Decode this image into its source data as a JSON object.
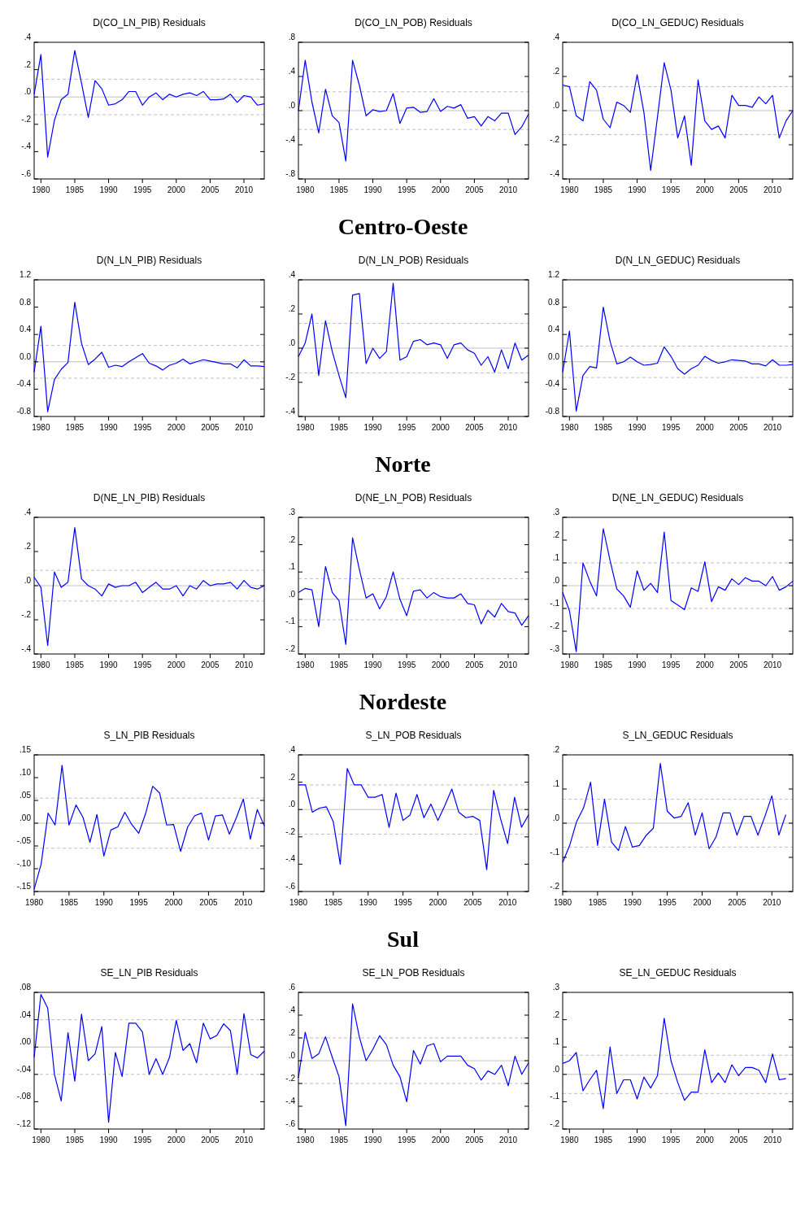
{
  "chart_data": [
    {
      "type": "line",
      "title": "D(CO_LN_PIB) Residuals",
      "x": [
        1979,
        1980,
        1981,
        1982,
        1983,
        1984,
        1985,
        1986,
        1987,
        1988,
        1989,
        1990,
        1991,
        1992,
        1993,
        1994,
        1995,
        1996,
        1997,
        1998,
        1999,
        2000,
        2001,
        2002,
        2003,
        2004,
        2005,
        2006,
        2007,
        2008,
        2009,
        2010,
        2011,
        2012,
        2013
      ],
      "color": "#0000ff",
      "values": [
        0.02,
        0.31,
        -0.44,
        -0.17,
        -0.02,
        0.02,
        0.34,
        0.1,
        -0.15,
        0.12,
        0.06,
        -0.06,
        -0.05,
        -0.02,
        0.04,
        0.04,
        -0.06,
        0.0,
        0.03,
        -0.02,
        0.02,
        0.0,
        0.02,
        0.03,
        0.01,
        0.04,
        -0.02,
        -0.02,
        -0.015,
        0.02,
        -0.04,
        0.01,
        0.0,
        -0.06,
        -0.05
      ],
      "xlim": [
        1979,
        2013
      ],
      "xticks": [
        1980,
        1985,
        1990,
        1995,
        2000,
        2005,
        2010
      ],
      "ylim": [
        -0.6,
        0.4
      ],
      "yticks": [
        {
          "value": -0.6,
          "label": "-.6"
        },
        {
          "value": -0.4,
          "label": "-.4"
        },
        {
          "value": -0.2,
          "label": "-.2"
        },
        {
          "value": 0,
          "label": ".0"
        },
        {
          "value": 0.2,
          "label": ".2"
        },
        {
          "value": 0.4,
          "label": ".4"
        }
      ],
      "ref_lines": [
        {
          "axis": "y",
          "value": 0,
          "color": "#c0c0c0",
          "line_style": "solid"
        },
        {
          "axis": "y",
          "value": 0.13,
          "color": "#c0c0c0",
          "line_style": "dashed"
        },
        {
          "axis": "y",
          "value": -0.13,
          "color": "#c0c0c0",
          "line_style": "dashed"
        }
      ]
    },
    {
      "type": "line",
      "title": "D(CO_LN_POB) Residuals",
      "x": [
        1979,
        1980,
        1981,
        1982,
        1983,
        1984,
        1985,
        1986,
        1987,
        1988,
        1989,
        1990,
        1991,
        1992,
        1993,
        1994,
        1995,
        1996,
        1997,
        1998,
        1999,
        2000,
        2001,
        2002,
        2003,
        2004,
        2005,
        2006,
        2007,
        2008,
        2009,
        2010,
        2011,
        2012,
        2013
      ],
      "color": "#0000ff",
      "values": [
        0.0,
        0.59,
        0.1,
        -0.26,
        0.25,
        -0.06,
        -0.14,
        -0.59,
        0.59,
        0.3,
        -0.06,
        0.01,
        -0.01,
        0.0,
        0.2,
        -0.15,
        0.03,
        0.04,
        -0.02,
        -0.01,
        0.14,
        -0.01,
        0.05,
        0.03,
        0.07,
        -0.09,
        -0.07,
        -0.18,
        -0.07,
        -0.12,
        -0.03,
        -0.03,
        -0.28,
        -0.19,
        -0.04
      ],
      "xlim": [
        1979,
        2013
      ],
      "xticks": [
        1980,
        1985,
        1990,
        1995,
        2000,
        2005,
        2010
      ],
      "ylim": [
        -0.8,
        0.8
      ],
      "yticks": [
        {
          "value": -0.8,
          "label": "-.8"
        },
        {
          "value": -0.4,
          "label": "-.4"
        },
        {
          "value": 0,
          "label": ".0"
        },
        {
          "value": 0.4,
          "label": ".4"
        },
        {
          "value": 0.8,
          "label": ".8"
        }
      ],
      "ref_lines": [
        {
          "axis": "y",
          "value": 0,
          "color": "#c0c0c0",
          "line_style": "solid"
        },
        {
          "axis": "y",
          "value": 0.22,
          "color": "#c0c0c0",
          "line_style": "dashed"
        },
        {
          "axis": "y",
          "value": -0.22,
          "color": "#c0c0c0",
          "line_style": "dashed"
        }
      ],
      "annotations": [
        "Centro-Oeste"
      ]
    },
    {
      "type": "line",
      "title": "D(CO_LN_GEDUC) Residuals",
      "x": [
        1979,
        1980,
        1981,
        1982,
        1983,
        1984,
        1985,
        1986,
        1987,
        1988,
        1989,
        1990,
        1991,
        1992,
        1993,
        1994,
        1995,
        1996,
        1997,
        1998,
        1999,
        2000,
        2001,
        2002,
        2003,
        2004,
        2005,
        2006,
        2007,
        2008,
        2009,
        2010,
        2011,
        2012,
        2013
      ],
      "color": "#0000ff",
      "values": [
        0.15,
        0.14,
        -0.03,
        -0.06,
        0.17,
        0.12,
        -0.05,
        -0.1,
        0.05,
        0.03,
        -0.01,
        0.21,
        -0.01,
        -0.35,
        -0.04,
        0.28,
        0.12,
        -0.16,
        -0.03,
        -0.32,
        0.18,
        -0.06,
        -0.11,
        -0.09,
        -0.16,
        0.09,
        0.03,
        0.03,
        0.02,
        0.08,
        0.04,
        0.09,
        -0.16,
        -0.06,
        0.0
      ],
      "xlim": [
        1979,
        2013
      ],
      "xticks": [
        1980,
        1985,
        1990,
        1995,
        2000,
        2005,
        2010
      ],
      "ylim": [
        -0.4,
        0.4
      ],
      "yticks": [
        {
          "value": -0.4,
          "label": "-.4"
        },
        {
          "value": -0.2,
          "label": "-.2"
        },
        {
          "value": 0,
          "label": ".0"
        },
        {
          "value": 0.2,
          "label": ".2"
        },
        {
          "value": 0.4,
          "label": ".4"
        }
      ],
      "ref_lines": [
        {
          "axis": "y",
          "value": 0,
          "color": "#c0c0c0",
          "line_style": "solid"
        },
        {
          "axis": "y",
          "value": 0.14,
          "color": "#c0c0c0",
          "line_style": "dashed"
        },
        {
          "axis": "y",
          "value": -0.14,
          "color": "#c0c0c0",
          "line_style": "dashed"
        }
      ]
    },
    {
      "type": "line",
      "title": "D(N_LN_PIB) Residuals",
      "x": [
        1979,
        1980,
        1981,
        1982,
        1983,
        1984,
        1985,
        1986,
        1987,
        1988,
        1989,
        1990,
        1991,
        1992,
        1993,
        1994,
        1995,
        1996,
        1997,
        1998,
        1999,
        2000,
        2001,
        2002,
        2003,
        2004,
        2005,
        2006,
        2007,
        2008,
        2009,
        2010,
        2011,
        2012,
        2013
      ],
      "color": "#0000ff",
      "values": [
        -0.15,
        0.52,
        -0.73,
        -0.26,
        -0.11,
        -0.01,
        0.87,
        0.27,
        -0.04,
        0.04,
        0.14,
        -0.08,
        -0.05,
        -0.07,
        0.0,
        0.06,
        0.12,
        -0.02,
        -0.06,
        -0.12,
        -0.05,
        -0.02,
        0.04,
        -0.03,
        0.0,
        0.03,
        0.01,
        -0.01,
        -0.03,
        -0.03,
        -0.09,
        0.03,
        -0.06,
        -0.06,
        -0.07
      ],
      "xlim": [
        1979,
        2013
      ],
      "xticks": [
        1980,
        1985,
        1990,
        1995,
        2000,
        2005,
        2010
      ],
      "ylim": [
        -0.8,
        1.2
      ],
      "yticks": [
        -0.8,
        -0.4,
        {
          "value": 0,
          "label": "0.0"
        },
        0.4,
        0.8,
        1.2
      ],
      "ref_lines": [
        {
          "axis": "y",
          "value": 0,
          "color": "#c0c0c0",
          "line_style": "solid"
        },
        {
          "axis": "y",
          "value": 0.24,
          "color": "#c0c0c0",
          "line_style": "dashed"
        },
        {
          "axis": "y",
          "value": -0.24,
          "color": "#c0c0c0",
          "line_style": "dashed"
        }
      ]
    },
    {
      "type": "line",
      "title": "D(N_LN_POB) Residuals",
      "x": [
        1979,
        1980,
        1981,
        1982,
        1983,
        1984,
        1985,
        1986,
        1987,
        1988,
        1989,
        1990,
        1991,
        1992,
        1993,
        1994,
        1995,
        1996,
        1997,
        1998,
        1999,
        2000,
        2001,
        2002,
        2003,
        2004,
        2005,
        2006,
        2007,
        2008,
        2009,
        2010,
        2011,
        2012,
        2013
      ],
      "color": "#0000ff",
      "values": [
        -0.05,
        0.03,
        0.2,
        -0.16,
        0.16,
        -0.02,
        -0.16,
        -0.29,
        0.31,
        0.32,
        -0.09,
        0.0,
        -0.06,
        -0.02,
        0.38,
        -0.07,
        -0.05,
        0.04,
        0.05,
        0.02,
        0.03,
        0.02,
        -0.06,
        0.02,
        0.03,
        -0.01,
        -0.03,
        -0.1,
        -0.05,
        -0.14,
        -0.01,
        -0.12,
        0.03,
        -0.07,
        -0.04
      ],
      "xlim": [
        1979,
        2013
      ],
      "xticks": [
        1980,
        1985,
        1990,
        1995,
        2000,
        2005,
        2010
      ],
      "ylim": [
        -0.4,
        0.4
      ],
      "yticks": [
        {
          "value": -0.4,
          "label": "-.4"
        },
        {
          "value": -0.2,
          "label": "-.2"
        },
        {
          "value": 0,
          "label": ".0"
        },
        {
          "value": 0.2,
          "label": ".2"
        },
        {
          "value": 0.4,
          "label": ".4"
        }
      ],
      "ref_lines": [
        {
          "axis": "y",
          "value": 0,
          "color": "#c0c0c0",
          "line_style": "solid"
        },
        {
          "axis": "y",
          "value": 0.145,
          "color": "#c0c0c0",
          "line_style": "dashed"
        },
        {
          "axis": "y",
          "value": -0.145,
          "color": "#c0c0c0",
          "line_style": "dashed"
        }
      ],
      "annotations": [
        "Norte"
      ]
    },
    {
      "type": "line",
      "title": "D(N_LN_GEDUC) Residuals",
      "x": [
        1979,
        1980,
        1981,
        1982,
        1983,
        1984,
        1985,
        1986,
        1987,
        1988,
        1989,
        1990,
        1991,
        1992,
        1993,
        1994,
        1995,
        1996,
        1997,
        1998,
        1999,
        2000,
        2001,
        2002,
        2003,
        2004,
        2005,
        2006,
        2007,
        2008,
        2009,
        2010,
        2011,
        2012,
        2013
      ],
      "color": "#0000ff",
      "values": [
        -0.15,
        0.45,
        -0.72,
        -0.2,
        -0.07,
        -0.09,
        0.8,
        0.3,
        -0.03,
        0.0,
        0.07,
        0.0,
        -0.05,
        -0.04,
        -0.02,
        0.22,
        0.08,
        -0.1,
        -0.18,
        -0.1,
        -0.05,
        0.08,
        0.02,
        -0.02,
        0.0,
        0.03,
        0.02,
        0.01,
        -0.03,
        -0.03,
        -0.06,
        0.03,
        -0.05,
        -0.05,
        -0.04
      ],
      "xlim": [
        1979,
        2013
      ],
      "xticks": [
        1980,
        1985,
        1990,
        1995,
        2000,
        2005,
        2010
      ],
      "ylim": [
        -0.8,
        1.2
      ],
      "yticks": [
        -0.8,
        -0.4,
        {
          "value": 0,
          "label": "0.0"
        },
        0.4,
        0.8,
        1.2
      ],
      "ref_lines": [
        {
          "axis": "y",
          "value": 0,
          "color": "#c0c0c0",
          "line_style": "solid"
        },
        {
          "axis": "y",
          "value": 0.23,
          "color": "#c0c0c0",
          "line_style": "dashed"
        },
        {
          "axis": "y",
          "value": -0.23,
          "color": "#c0c0c0",
          "line_style": "dashed"
        }
      ]
    },
    {
      "type": "line",
      "title": "D(NE_LN_PIB) Residuals",
      "x": [
        1979,
        1980,
        1981,
        1982,
        1983,
        1984,
        1985,
        1986,
        1987,
        1988,
        1989,
        1990,
        1991,
        1992,
        1993,
        1994,
        1995,
        1996,
        1997,
        1998,
        1999,
        2000,
        2001,
        2002,
        2003,
        2004,
        2005,
        2006,
        2007,
        2008,
        2009,
        2010,
        2011,
        2012,
        2013
      ],
      "color": "#0000ff",
      "values": [
        0.05,
        -0.01,
        -0.35,
        0.08,
        -0.01,
        0.02,
        0.34,
        0.04,
        0.0,
        -0.02,
        -0.06,
        0.01,
        -0.01,
        0.0,
        0.0,
        0.02,
        -0.04,
        -0.01,
        0.02,
        -0.02,
        -0.02,
        0.0,
        -0.06,
        0.0,
        -0.02,
        0.03,
        0.0,
        0.01,
        0.01,
        0.02,
        -0.02,
        0.03,
        -0.01,
        -0.02,
        0.0
      ],
      "xlim": [
        1979,
        2013
      ],
      "xticks": [
        1980,
        1985,
        1990,
        1995,
        2000,
        2005,
        2010
      ],
      "ylim": [
        -0.4,
        0.4
      ],
      "yticks": [
        {
          "value": -0.4,
          "label": "-.4"
        },
        {
          "value": -0.2,
          "label": "-.2"
        },
        {
          "value": 0,
          "label": ".0"
        },
        {
          "value": 0.2,
          "label": ".2"
        },
        {
          "value": 0.4,
          "label": ".4"
        }
      ],
      "ref_lines": [
        {
          "axis": "y",
          "value": 0,
          "color": "#c0c0c0",
          "line_style": "solid"
        },
        {
          "axis": "y",
          "value": 0.09,
          "color": "#c0c0c0",
          "line_style": "dashed"
        },
        {
          "axis": "y",
          "value": -0.09,
          "color": "#c0c0c0",
          "line_style": "dashed"
        }
      ]
    },
    {
      "type": "line",
      "title": "D(NE_LN_POB) Residuals",
      "x": [
        1979,
        1980,
        1981,
        1982,
        1983,
        1984,
        1985,
        1986,
        1987,
        1988,
        1989,
        1990,
        1991,
        1992,
        1993,
        1994,
        1995,
        1996,
        1997,
        1998,
        1999,
        2000,
        2001,
        2002,
        2003,
        2004,
        2005,
        2006,
        2007,
        2008,
        2009,
        2010,
        2011,
        2012,
        2013
      ],
      "color": "#0000ff",
      "values": [
        0.025,
        0.04,
        0.035,
        -0.1,
        0.12,
        0.025,
        -0.005,
        -0.165,
        0.225,
        0.11,
        0.005,
        0.02,
        -0.035,
        0.01,
        0.1,
        0.0,
        -0.06,
        0.03,
        0.035,
        0.005,
        0.025,
        0.01,
        0.005,
        0.005,
        0.02,
        -0.015,
        -0.02,
        -0.09,
        -0.04,
        -0.065,
        -0.015,
        -0.045,
        -0.05,
        -0.095,
        -0.06
      ],
      "xlim": [
        1979,
        2013
      ],
      "xticks": [
        1980,
        1985,
        1990,
        1995,
        2000,
        2005,
        2010
      ],
      "ylim": [
        -0.2,
        0.3
      ],
      "yticks": [
        {
          "value": -0.2,
          "label": "-.2"
        },
        {
          "value": -0.1,
          "label": "-.1"
        },
        {
          "value": 0,
          "label": ".0"
        },
        {
          "value": 0.1,
          "label": ".1"
        },
        {
          "value": 0.2,
          "label": ".2"
        },
        {
          "value": 0.3,
          "label": ".3"
        }
      ],
      "ref_lines": [
        {
          "axis": "y",
          "value": 0,
          "color": "#c0c0c0",
          "line_style": "solid"
        },
        {
          "axis": "y",
          "value": 0.075,
          "color": "#c0c0c0",
          "line_style": "dashed"
        },
        {
          "axis": "y",
          "value": -0.075,
          "color": "#c0c0c0",
          "line_style": "dashed"
        }
      ],
      "annotations": [
        "Nordeste"
      ]
    },
    {
      "type": "line",
      "title": "D(NE_LN_GEDUC) Residuals",
      "x": [
        1979,
        1980,
        1981,
        1982,
        1983,
        1984,
        1985,
        1986,
        1987,
        1988,
        1989,
        1990,
        1991,
        1992,
        1993,
        1994,
        1995,
        1996,
        1997,
        1998,
        1999,
        2000,
        2001,
        2002,
        2003,
        2004,
        2005,
        2006,
        2007,
        2008,
        2009,
        2010,
        2011,
        2012,
        2013
      ],
      "color": "#0000ff",
      "values": [
        -0.03,
        -0.11,
        -0.29,
        0.1,
        0.02,
        -0.045,
        0.25,
        0.11,
        -0.015,
        -0.045,
        -0.095,
        0.065,
        -0.02,
        0.01,
        -0.03,
        0.235,
        -0.065,
        -0.085,
        -0.105,
        -0.01,
        -0.025,
        0.105,
        -0.07,
        -0.005,
        -0.02,
        0.03,
        0.005,
        0.035,
        0.02,
        0.02,
        0.0,
        0.04,
        -0.02,
        -0.005,
        0.02
      ],
      "xlim": [
        1979,
        2013
      ],
      "xticks": [
        1980,
        1985,
        1990,
        1995,
        2000,
        2005,
        2010
      ],
      "ylim": [
        -0.3,
        0.3
      ],
      "yticks": [
        {
          "value": -0.3,
          "label": "-.3"
        },
        {
          "value": -0.2,
          "label": "-.2"
        },
        {
          "value": -0.1,
          "label": "-.1"
        },
        {
          "value": 0,
          "label": ".0"
        },
        {
          "value": 0.1,
          "label": ".1"
        },
        {
          "value": 0.2,
          "label": ".2"
        },
        {
          "value": 0.3,
          "label": ".3"
        }
      ],
      "ref_lines": [
        {
          "axis": "y",
          "value": 0,
          "color": "#c0c0c0",
          "line_style": "solid"
        },
        {
          "axis": "y",
          "value": 0.1,
          "color": "#c0c0c0",
          "line_style": "dashed"
        },
        {
          "axis": "y",
          "value": -0.1,
          "color": "#c0c0c0",
          "line_style": "dashed"
        }
      ]
    },
    {
      "type": "line",
      "title": "S_LN_PIB Residuals",
      "x": [
        1980,
        1981,
        1982,
        1983,
        1984,
        1985,
        1986,
        1987,
        1988,
        1989,
        1990,
        1991,
        1992,
        1993,
        1994,
        1995,
        1996,
        1997,
        1998,
        1999,
        2000,
        2001,
        2002,
        2003,
        2004,
        2005,
        2006,
        2007,
        2008,
        2009,
        2010,
        2011,
        2012,
        2013
      ],
      "color": "#0000ff",
      "values": [
        -0.145,
        -0.09,
        0.022,
        -0.004,
        0.127,
        -0.004,
        0.04,
        0.013,
        -0.042,
        0.019,
        -0.072,
        -0.015,
        -0.008,
        0.024,
        -0.003,
        -0.022,
        0.022,
        0.081,
        0.066,
        -0.004,
        -0.003,
        -0.062,
        -0.009,
        0.016,
        0.022,
        -0.037,
        0.016,
        0.018,
        -0.024,
        0.012,
        0.053,
        -0.035,
        0.03,
        -0.006
      ],
      "xlim": [
        1980,
        2013
      ],
      "xticks": [
        1980,
        1985,
        1990,
        1995,
        2000,
        2005,
        2010
      ],
      "ylim": [
        -0.15,
        0.15
      ],
      "yticks": [
        {
          "value": -0.15,
          "label": "-.15"
        },
        {
          "value": -0.1,
          "label": "-.10"
        },
        {
          "value": -0.05,
          "label": "-.05"
        },
        {
          "value": 0,
          "label": ".00"
        },
        {
          "value": 0.05,
          "label": ".05"
        },
        {
          "value": 0.1,
          "label": ".10"
        },
        {
          "value": 0.15,
          "label": ".15"
        }
      ],
      "ref_lines": [
        {
          "axis": "y",
          "value": 0,
          "color": "#c0c0c0",
          "line_style": "solid"
        },
        {
          "axis": "y",
          "value": 0.055,
          "color": "#c0c0c0",
          "line_style": "dashed"
        },
        {
          "axis": "y",
          "value": -0.055,
          "color": "#c0c0c0",
          "line_style": "dashed"
        }
      ]
    },
    {
      "type": "line",
      "title": "S_LN_POB Residuals",
      "x": [
        1980,
        1981,
        1982,
        1983,
        1984,
        1985,
        1986,
        1987,
        1988,
        1989,
        1990,
        1991,
        1992,
        1993,
        1994,
        1995,
        1996,
        1997,
        1998,
        1999,
        2000,
        2001,
        2002,
        2003,
        2004,
        2005,
        2006,
        2007,
        2008,
        2009,
        2010,
        2011,
        2012,
        2013
      ],
      "color": "#0000ff",
      "values": [
        0.18,
        0.18,
        -0.02,
        0.01,
        0.02,
        -0.09,
        -0.4,
        0.3,
        0.18,
        0.18,
        0.09,
        0.09,
        0.11,
        -0.13,
        0.12,
        -0.08,
        -0.04,
        0.11,
        -0.06,
        0.04,
        -0.08,
        0.03,
        0.15,
        -0.02,
        -0.06,
        -0.05,
        -0.08,
        -0.44,
        0.14,
        -0.07,
        -0.25,
        0.09,
        -0.13,
        -0.04
      ],
      "xlim": [
        1980,
        2013
      ],
      "xticks": [
        1980,
        1985,
        1990,
        1995,
        2000,
        2005,
        2010
      ],
      "ylim": [
        -0.6,
        0.4
      ],
      "yticks": [
        {
          "value": -0.6,
          "label": "-.6"
        },
        {
          "value": -0.4,
          "label": "-.4"
        },
        {
          "value": -0.2,
          "label": "-.2"
        },
        {
          "value": 0,
          "label": ".0"
        },
        {
          "value": 0.2,
          "label": ".2"
        },
        {
          "value": 0.4,
          "label": ".4"
        }
      ],
      "ref_lines": [
        {
          "axis": "y",
          "value": 0,
          "color": "#c0c0c0",
          "line_style": "solid"
        },
        {
          "axis": "y",
          "value": 0.18,
          "color": "#c0c0c0",
          "line_style": "dashed"
        },
        {
          "axis": "y",
          "value": -0.18,
          "color": "#c0c0c0",
          "line_style": "dashed"
        }
      ],
      "annotations": [
        "Sul"
      ]
    },
    {
      "type": "line",
      "title": "S_LN_GEDUC Residuals",
      "x": [
        1980,
        1981,
        1982,
        1983,
        1984,
        1985,
        1986,
        1987,
        1988,
        1989,
        1990,
        1991,
        1992,
        1993,
        1994,
        1995,
        1996,
        1997,
        1998,
        1999,
        2000,
        2001,
        2002,
        2003,
        2004,
        2005,
        2006,
        2007,
        2008,
        2009,
        2010,
        2011,
        2012
      ],
      "color": "#0000ff",
      "values": [
        -0.115,
        -0.065,
        0.005,
        0.045,
        0.12,
        -0.065,
        0.07,
        -0.055,
        -0.08,
        -0.01,
        -0.07,
        -0.065,
        -0.035,
        -0.015,
        0.175,
        0.035,
        0.015,
        0.02,
        0.06,
        -0.035,
        0.03,
        -0.075,
        -0.04,
        0.03,
        0.03,
        -0.035,
        0.02,
        0.02,
        -0.035,
        0.02,
        0.08,
        -0.035,
        0.025
      ],
      "xlim": [
        1980,
        2013
      ],
      "xticks": [
        1980,
        1985,
        1990,
        1995,
        2000,
        2005,
        2010
      ],
      "ylim": [
        -0.2,
        0.2
      ],
      "yticks": [
        {
          "value": -0.2,
          "label": "-.2"
        },
        {
          "value": -0.1,
          "label": "-.1"
        },
        {
          "value": 0,
          "label": ".0"
        },
        {
          "value": 0.1,
          "label": ".1"
        },
        {
          "value": 0.2,
          "label": ".2"
        }
      ],
      "ref_lines": [
        {
          "axis": "y",
          "value": 0,
          "color": "#c0c0c0",
          "line_style": "solid"
        },
        {
          "axis": "y",
          "value": 0.07,
          "color": "#c0c0c0",
          "line_style": "dashed"
        },
        {
          "axis": "y",
          "value": -0.07,
          "color": "#c0c0c0",
          "line_style": "dashed"
        }
      ]
    },
    {
      "type": "line",
      "title": "SE_LN_PIB Residuals",
      "x": [
        1979,
        1980,
        1981,
        1982,
        1983,
        1984,
        1985,
        1986,
        1987,
        1988,
        1989,
        1990,
        1991,
        1992,
        1993,
        1994,
        1995,
        1996,
        1997,
        1998,
        1999,
        2000,
        2001,
        2002,
        2003,
        2004,
        2005,
        2006,
        2007,
        2008,
        2009,
        2010,
        2011,
        2012,
        2013
      ],
      "color": "#0000ff",
      "values": [
        -0.015,
        0.077,
        0.057,
        -0.04,
        -0.079,
        0.021,
        -0.05,
        0.048,
        -0.02,
        -0.01,
        0.03,
        -0.11,
        -0.008,
        -0.043,
        0.035,
        0.035,
        0.022,
        -0.04,
        -0.017,
        -0.04,
        -0.015,
        0.039,
        -0.005,
        0.005,
        -0.023,
        0.035,
        0.012,
        0.017,
        0.034,
        0.024,
        -0.04,
        0.049,
        -0.011,
        -0.016,
        -0.006
      ],
      "xlim": [
        1979,
        2013
      ],
      "xticks": [
        1980,
        1985,
        1990,
        1995,
        2000,
        2005,
        2010
      ],
      "ylim": [
        -0.12,
        0.08
      ],
      "yticks": [
        {
          "value": -0.12,
          "label": "-.12"
        },
        {
          "value": -0.08,
          "label": "-.08"
        },
        {
          "value": -0.04,
          "label": "-.04"
        },
        {
          "value": 0,
          "label": ".00"
        },
        {
          "value": 0.04,
          "label": ".04"
        },
        {
          "value": 0.08,
          "label": ".08"
        }
      ],
      "ref_lines": [
        {
          "axis": "y",
          "value": 0,
          "color": "#c0c0c0",
          "line_style": "solid"
        },
        {
          "axis": "y",
          "value": 0.04,
          "color": "#c0c0c0",
          "line_style": "dashed"
        },
        {
          "axis": "y",
          "value": -0.04,
          "color": "#c0c0c0",
          "line_style": "dashed"
        }
      ]
    },
    {
      "type": "line",
      "title": "SE_LN_POB Residuals",
      "x": [
        1979,
        1980,
        1981,
        1982,
        1983,
        1984,
        1985,
        1986,
        1987,
        1988,
        1989,
        1990,
        1991,
        1992,
        1993,
        1994,
        1995,
        1996,
        1997,
        1998,
        1999,
        2000,
        2001,
        2002,
        2003,
        2004,
        2005,
        2006,
        2007,
        2008,
        2009,
        2010,
        2011,
        2012,
        2013
      ],
      "color": "#0000ff",
      "values": [
        -0.15,
        0.25,
        0.02,
        0.06,
        0.21,
        0.03,
        -0.14,
        -0.57,
        0.5,
        0.21,
        0.0,
        0.1,
        0.22,
        0.14,
        -0.04,
        -0.14,
        -0.36,
        0.09,
        -0.03,
        0.13,
        0.15,
        -0.01,
        0.04,
        0.04,
        0.04,
        -0.04,
        -0.07,
        -0.17,
        -0.09,
        -0.12,
        -0.04,
        -0.22,
        0.04,
        -0.12,
        -0.02
      ],
      "xlim": [
        1979,
        2013
      ],
      "xticks": [
        1980,
        1985,
        1990,
        1995,
        2000,
        2005,
        2010
      ],
      "ylim": [
        -0.6,
        0.6
      ],
      "yticks": [
        {
          "value": -0.6,
          "label": "-.6"
        },
        {
          "value": -0.4,
          "label": "-.4"
        },
        {
          "value": -0.2,
          "label": "-.2"
        },
        {
          "value": 0,
          "label": ".0"
        },
        {
          "value": 0.2,
          "label": ".2"
        },
        {
          "value": 0.4,
          "label": ".4"
        },
        {
          "value": 0.6,
          "label": ".6"
        }
      ],
      "ref_lines": [
        {
          "axis": "y",
          "value": 0,
          "color": "#c0c0c0",
          "line_style": "solid"
        },
        {
          "axis": "y",
          "value": 0.2,
          "color": "#c0c0c0",
          "line_style": "dashed"
        },
        {
          "axis": "y",
          "value": -0.2,
          "color": "#c0c0c0",
          "line_style": "dashed"
        }
      ]
    },
    {
      "type": "line",
      "title": "SE_LN_GEDUC Residuals",
      "x": [
        1979,
        1980,
        1981,
        1982,
        1983,
        1984,
        1985,
        1986,
        1987,
        1988,
        1989,
        1990,
        1991,
        1992,
        1993,
        1994,
        1995,
        1996,
        1997,
        1998,
        1999,
        2000,
        2001,
        2002,
        2003,
        2004,
        2005,
        2006,
        2007,
        2008,
        2009,
        2010,
        2011,
        2012
      ],
      "color": "#0000ff",
      "values": [
        0.04,
        0.05,
        0.08,
        -0.06,
        -0.02,
        0.015,
        -0.125,
        0.1,
        -0.07,
        -0.02,
        -0.02,
        -0.09,
        -0.01,
        -0.05,
        -0.005,
        0.205,
        0.05,
        -0.03,
        -0.095,
        -0.065,
        -0.065,
        0.09,
        -0.03,
        0.005,
        -0.03,
        0.035,
        -0.005,
        0.025,
        0.025,
        0.015,
        -0.03,
        0.075,
        -0.02,
        -0.015
      ],
      "xlim": [
        1979,
        2013
      ],
      "xticks": [
        1980,
        1985,
        1990,
        1995,
        2000,
        2005,
        2010
      ],
      "ylim": [
        -0.2,
        0.3
      ],
      "yticks": [
        {
          "value": -0.2,
          "label": "-.2"
        },
        {
          "value": -0.1,
          "label": "-.1"
        },
        {
          "value": 0,
          "label": ".0"
        },
        {
          "value": 0.1,
          "label": ".1"
        },
        {
          "value": 0.2,
          "label": ".2"
        },
        {
          "value": 0.3,
          "label": ".3"
        }
      ],
      "ref_lines": [
        {
          "axis": "y",
          "value": 0,
          "color": "#c0c0c0",
          "line_style": "solid"
        },
        {
          "axis": "y",
          "value": 0.07,
          "color": "#c0c0c0",
          "line_style": "dashed"
        },
        {
          "axis": "y",
          "value": -0.07,
          "color": "#c0c0c0",
          "line_style": "dashed"
        }
      ]
    }
  ]
}
